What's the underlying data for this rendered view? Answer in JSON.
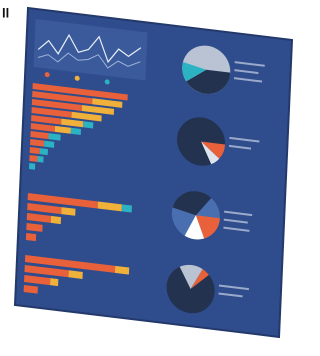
{
  "corner_text": "ll"
}
